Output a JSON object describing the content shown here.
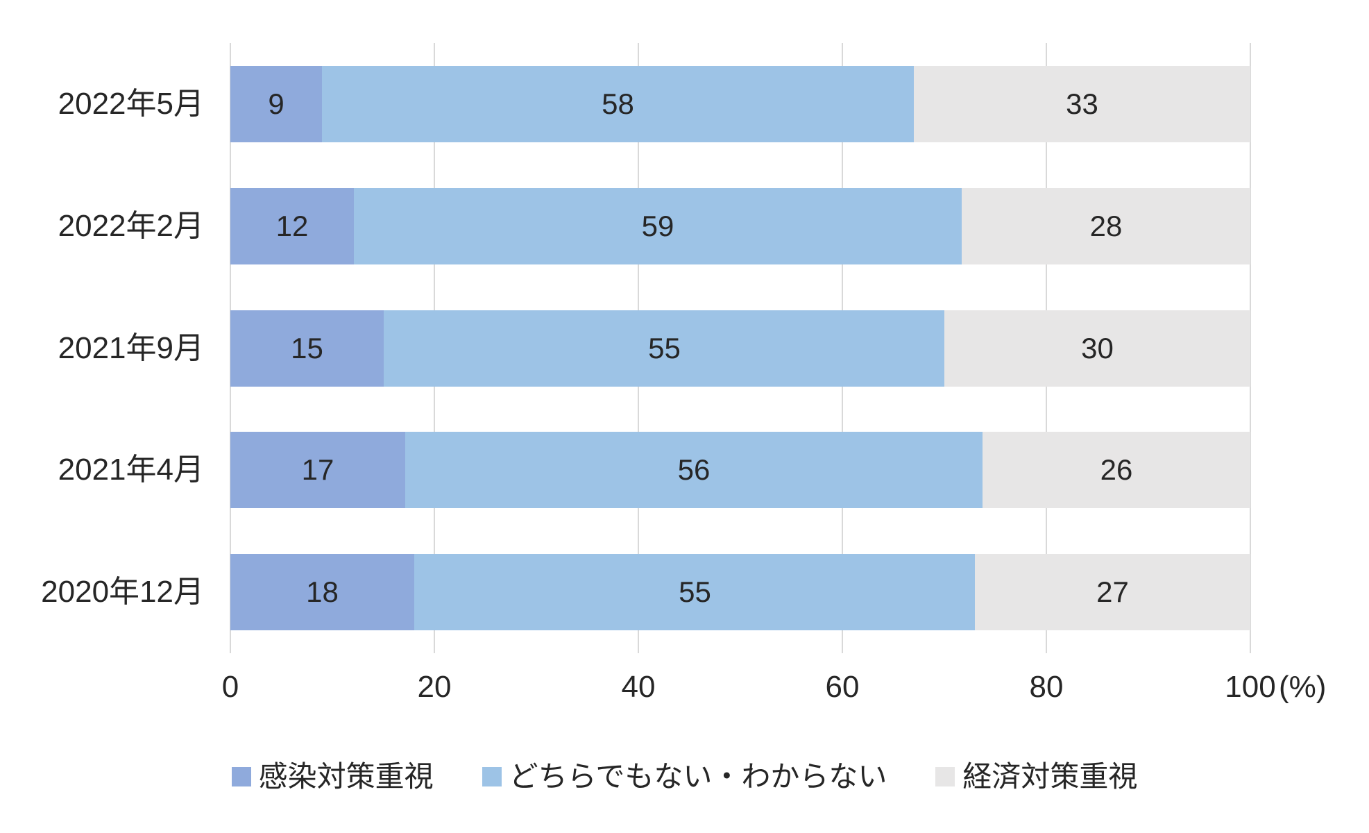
{
  "chart_data": {
    "type": "bar",
    "orientation": "horizontal",
    "stacked": true,
    "percent_stacked": true,
    "title": "",
    "categories": [
      "2022年5月",
      "2022年2月",
      "2021年9月",
      "2021年4月",
      "2020年12月"
    ],
    "series": [
      {
        "name": "感染対策重視",
        "color": "#8FAADC",
        "values": [
          9,
          12,
          15,
          17,
          18
        ]
      },
      {
        "name": "どちらでもない・わからない",
        "color": "#9DC3E6",
        "values": [
          58,
          59,
          55,
          56,
          55
        ]
      },
      {
        "name": "経済対策重視",
        "color": "#E7E6E6",
        "values": [
          33,
          28,
          30,
          26,
          27
        ]
      }
    ],
    "x_axis": {
      "ticks": [
        0,
        20,
        40,
        60,
        80,
        100
      ],
      "unit_label": "(%)",
      "min": 0,
      "max": 100
    },
    "grid": true,
    "gridline_color": "#D9D9D9",
    "text_color": "#262626",
    "background_color": "#FFFFFF",
    "legend_position": "bottom"
  }
}
